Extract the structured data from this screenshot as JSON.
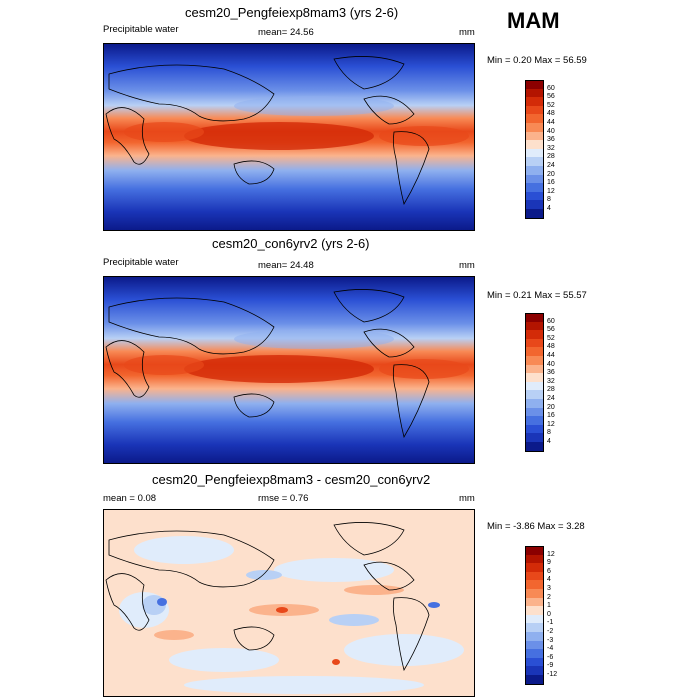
{
  "season": "MAM",
  "units_label": "mm",
  "panels": [
    {
      "title": "cesm20_Pengfeiexp8mam3 (yrs 2-6)",
      "left_label": "Precipitable water",
      "center_label": "mean=  24.56",
      "minmax": "Min =   0.20 Max =   56.59",
      "palette": "abs"
    },
    {
      "title": "cesm20_con6yrv2 (yrs 2-6)",
      "left_label": "Precipitable water",
      "center_label": "mean=  24.48",
      "minmax": "Min =   0.21 Max =   55.57",
      "palette": "abs"
    },
    {
      "title": "cesm20_Pengfeiexp8mam3 - cesm20_con6yrv2",
      "left_label": "mean =   0.08",
      "center_label": "rmse =   0.76",
      "minmax": "Min =  -3.86 Max =   3.28",
      "palette": "diff"
    }
  ],
  "legend_abs": {
    "labels": [
      "60",
      "56",
      "52",
      "48",
      "44",
      "40",
      "36",
      "32",
      "28",
      "24",
      "20",
      "16",
      "12",
      "8",
      "4"
    ],
    "colors": [
      "#8b0000",
      "#b31400",
      "#d32b08",
      "#e8481a",
      "#f2662f",
      "#f88a55",
      "#fbb38c",
      "#fde0cc",
      "#e0ecfb",
      "#b8d0f5",
      "#8fb0ef",
      "#6b90e8",
      "#4670e0",
      "#2a4fd4",
      "#1a35b8",
      "#0b1a8a"
    ]
  },
  "legend_diff": {
    "labels": [
      "12",
      "9",
      "6",
      "4",
      "3",
      "2",
      "1",
      "0",
      "-1",
      "-2",
      "-3",
      "-4",
      "-6",
      "-9",
      "-12"
    ],
    "colors": [
      "#8b0000",
      "#b31400",
      "#d32b08",
      "#e8481a",
      "#f2662f",
      "#f88a55",
      "#fbb38c",
      "#fde0cc",
      "#e0ecfb",
      "#b8d0f5",
      "#8fb0ef",
      "#6b90e8",
      "#4670e0",
      "#2a4fd4",
      "#1a35b8",
      "#0b1a8a"
    ]
  }
}
